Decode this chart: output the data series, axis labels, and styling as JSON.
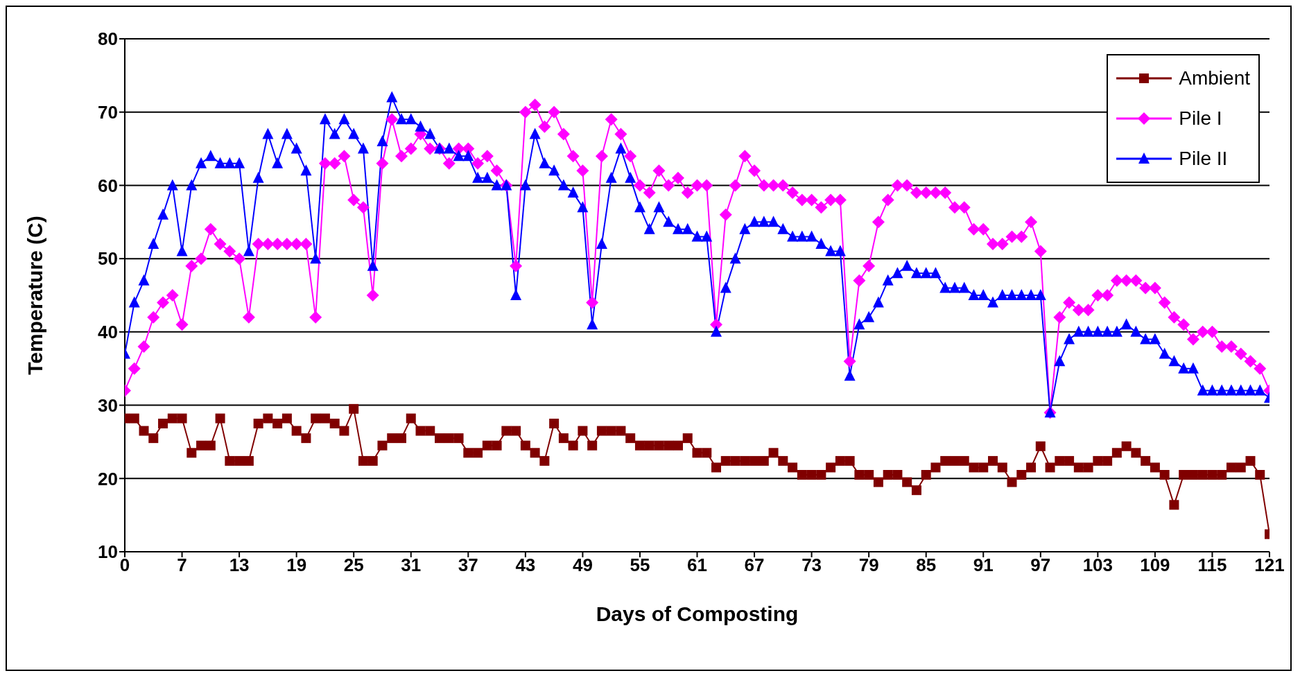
{
  "chart_data": {
    "type": "line",
    "xlabel": "Days of Composting",
    "ylabel": "Temperature (C)",
    "categories": [
      "0",
      null,
      null,
      null,
      null,
      null,
      "7",
      null,
      null,
      null,
      null,
      null,
      "13",
      null,
      null,
      null,
      null,
      null,
      "19",
      null,
      null,
      null,
      null,
      null,
      "25",
      null,
      null,
      null,
      null,
      null,
      "31",
      null,
      null,
      null,
      null,
      null,
      "37",
      null,
      null,
      null,
      null,
      null,
      "43",
      null,
      null,
      null,
      null,
      null,
      "49",
      null,
      null,
      null,
      null,
      null,
      "55",
      null,
      null,
      null,
      null,
      null,
      "61",
      null,
      null,
      null,
      null,
      null,
      "67",
      null,
      null,
      null,
      null,
      null,
      "73",
      null,
      null,
      null,
      null,
      null,
      "79",
      null,
      null,
      null,
      null,
      null,
      "85",
      null,
      null,
      null,
      null,
      null,
      "91",
      null,
      null,
      null,
      null,
      null,
      "97",
      null,
      null,
      null,
      null,
      null,
      "103",
      null,
      null,
      null,
      null,
      null,
      "109",
      null,
      null,
      null,
      null,
      null,
      "115",
      null,
      null,
      null,
      null,
      null,
      "121"
    ],
    "series": [
      {
        "name": "Ambient",
        "color": "#800000",
        "marker": "square",
        "values": [
          28.2,
          28.2,
          26.5,
          25.5,
          27.5,
          28.2,
          28.2,
          23.5,
          24.5,
          24.5,
          28.2,
          22.4,
          22.4,
          22.4,
          27.5,
          28.2,
          27.5,
          28.2,
          26.5,
          25.5,
          28.2,
          28.2,
          27.5,
          26.5,
          29.5,
          22.4,
          22.4,
          24.5,
          25.5,
          25.5,
          28.2,
          26.5,
          26.5,
          25.5,
          25.5,
          25.5,
          23.5,
          23.5,
          24.5,
          24.5,
          26.5,
          26.5,
          24.5,
          23.5,
          22.4,
          27.5,
          25.5,
          24.5,
          26.5,
          24.5,
          26.5,
          26.5,
          26.5,
          25.5,
          24.5,
          24.5,
          24.5,
          24.5,
          24.5,
          25.5,
          23.5,
          23.5,
          21.5,
          22.4,
          22.4,
          22.4,
          22.4,
          22.4,
          23.5,
          22.4,
          21.5,
          20.5,
          20.5,
          20.5,
          21.5,
          22.4,
          22.4,
          20.5,
          20.5,
          19.5,
          20.5,
          20.5,
          19.5,
          18.4,
          20.5,
          21.5,
          22.4,
          22.4,
          22.4,
          21.5,
          21.5,
          22.4,
          21.5,
          19.5,
          20.5,
          21.5,
          24.4,
          21.5,
          22.4,
          22.4,
          21.5,
          21.5,
          22.4,
          22.4,
          23.5,
          24.4,
          23.5,
          22.4,
          21.5,
          20.5,
          16.4,
          20.5,
          20.5,
          20.5,
          20.5,
          20.5,
          21.5,
          21.5,
          22.4,
          20.5,
          12.4
        ]
      },
      {
        "name": "Pile I",
        "color": "#ff00ff",
        "marker": "diamond",
        "values": [
          32,
          35,
          38,
          42,
          44,
          45,
          41,
          49,
          50,
          54,
          52,
          51,
          50,
          42,
          52,
          52,
          52,
          52,
          52,
          52,
          42,
          63,
          63,
          64,
          58,
          57,
          45,
          63,
          69,
          64,
          65,
          67,
          65,
          65,
          63,
          65,
          65,
          63,
          64,
          62,
          60,
          49,
          70,
          71,
          68,
          70,
          67,
          64,
          62,
          44,
          64,
          69,
          67,
          64,
          60,
          59,
          62,
          60,
          61,
          59,
          60,
          60,
          41,
          56,
          60,
          64,
          62,
          60,
          60,
          60,
          59,
          58,
          58,
          57,
          58,
          58,
          36,
          47,
          49,
          55,
          58,
          60,
          60,
          59,
          59,
          59,
          59,
          57,
          57,
          54,
          54,
          52,
          52,
          53,
          53,
          55,
          51,
          29,
          42,
          44,
          43,
          43,
          45,
          45,
          47,
          47,
          47,
          46,
          46,
          44,
          42,
          41,
          39,
          40,
          40,
          38,
          38,
          37,
          36,
          35,
          32
        ]
      },
      {
        "name": "Pile II",
        "color": "#0000ff",
        "marker": "triangle",
        "values": [
          37,
          44,
          47,
          52,
          56,
          60,
          51,
          60,
          63,
          64,
          63,
          63,
          63,
          51,
          61,
          67,
          63,
          67,
          65,
          62,
          50,
          69,
          67,
          69,
          67,
          65,
          49,
          66,
          72,
          69,
          69,
          68,
          67,
          65,
          65,
          64,
          64,
          61,
          61,
          60,
          60,
          45,
          60,
          67,
          63,
          62,
          60,
          59,
          57,
          41,
          52,
          61,
          65,
          61,
          57,
          54,
          57,
          55,
          54,
          54,
          53,
          53,
          40,
          46,
          50,
          54,
          55,
          55,
          55,
          54,
          53,
          53,
          53,
          52,
          51,
          51,
          34,
          41,
          42,
          44,
          47,
          48,
          49,
          48,
          48,
          48,
          46,
          46,
          46,
          45,
          45,
          44,
          45,
          45,
          45,
          45,
          45,
          29,
          36,
          39,
          40,
          40,
          40,
          40,
          40,
          41,
          40,
          39,
          39,
          37,
          36,
          35,
          35,
          32,
          32,
          32,
          32,
          32,
          32,
          32,
          31
        ]
      }
    ],
    "ylim": [
      10,
      80
    ],
    "yticks": [
      10,
      20,
      30,
      40,
      50,
      60,
      70,
      80
    ],
    "grid": "y",
    "legend": "top right",
    "line_style": "solid"
  }
}
